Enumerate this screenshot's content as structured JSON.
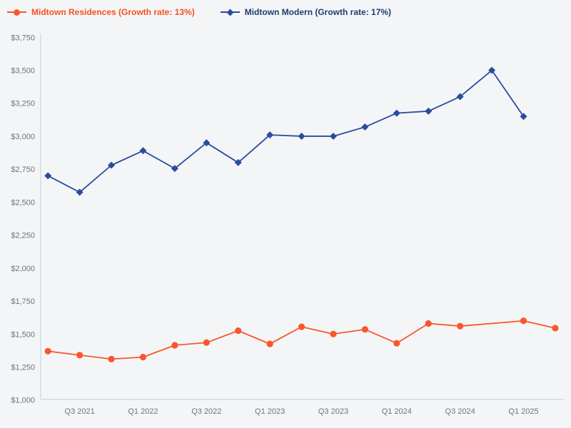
{
  "page": {
    "background_color": "#f4f5f7"
  },
  "legend": {
    "items": [
      {
        "label": "Midtown Residences (Growth rate: 13%)",
        "marker": "circle"
      },
      {
        "label": "Midtown Modern (Growth rate: 17%)",
        "marker": "diamond"
      }
    ]
  },
  "chart_data": {
    "type": "line",
    "title": "",
    "xlabel": "",
    "ylabel": "",
    "grid": false,
    "legend_position": "top-left",
    "axis_color": "#ccd4e2",
    "tick_label_color": "#6f7278",
    "ylim": [
      1000,
      3750
    ],
    "y_tick_values": [
      1000,
      1250,
      1500,
      1750,
      2000,
      2250,
      2500,
      2750,
      3000,
      3250,
      3500,
      3750
    ],
    "y_tick_labels": [
      "$1,000",
      "$1,250",
      "$1,500",
      "$1,750",
      "$2,000",
      "$2,250",
      "$2,500",
      "$2,750",
      "$3,000",
      "$3,250",
      "$3,500",
      "$3,750"
    ],
    "x_categories": [
      "Q2 2021",
      "Q3 2021",
      "Q4 2021",
      "Q1 2022",
      "Q2 2022",
      "Q3 2022",
      "Q4 2022",
      "Q1 2023",
      "Q2 2023",
      "Q3 2023",
      "Q4 2023",
      "Q1 2024",
      "Q2 2024",
      "Q3 2024",
      "Q4 2024",
      "Q1 2025",
      "Q2 2025"
    ],
    "x_tick_labels": [
      "Q3 2021",
      "Q1 2022",
      "Q3 2022",
      "Q1 2023",
      "Q3 2023",
      "Q1 2024",
      "Q3 2024",
      "Q1 2025"
    ],
    "series": [
      {
        "name": "Midtown Residences (Growth rate: 13%)",
        "color": "#f8572d",
        "label_color": "#f4501f",
        "marker": "circle",
        "values": [
          1370,
          1340,
          1310,
          1325,
          1415,
          1435,
          1525,
          1425,
          1555,
          1500,
          1535,
          1430,
          1580,
          1560,
          null,
          1600,
          1545
        ]
      },
      {
        "name": "Midtown Modern (Growth rate: 17%)",
        "color": "#2a4c9e",
        "label_color": "#1c3d72",
        "marker": "diamond",
        "values": [
          2700,
          2575,
          2780,
          2890,
          2755,
          2950,
          2800,
          3010,
          3000,
          3000,
          3070,
          3175,
          3190,
          3300,
          3500,
          3150,
          null
        ]
      }
    ]
  }
}
